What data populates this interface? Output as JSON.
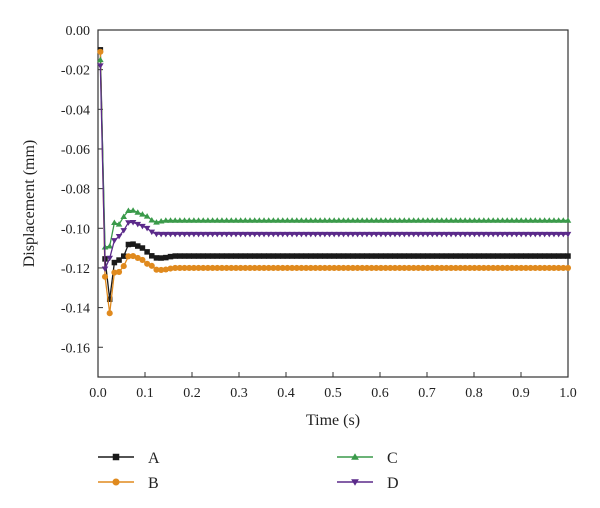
{
  "chart_data": {
    "type": "line",
    "xlabel": "Time (s)",
    "ylabel": "Displacement (mm)",
    "xlim": [
      0.0,
      1.0
    ],
    "ylim": [
      -0.175,
      0.0
    ],
    "xticks": [
      "0.0",
      "0.1",
      "0.2",
      "0.3",
      "0.4",
      "0.5",
      "0.6",
      "0.7",
      "0.8",
      "0.9",
      "1.0"
    ],
    "yticks": [
      "0.00",
      "-0.02",
      "-0.04",
      "-0.06",
      "-0.08",
      "-0.10",
      "-0.12",
      "-0.14",
      "-0.16"
    ],
    "grid": false,
    "legend_position": "bottom",
    "series": [
      {
        "name": "A",
        "color": "#1a1a1a",
        "marker": "square",
        "key": [
          [
            0.005,
            -0.01
          ],
          [
            0.01,
            -0.06
          ],
          [
            0.015,
            -0.116
          ],
          [
            0.025,
            -0.136
          ],
          [
            0.035,
            -0.117
          ],
          [
            0.045,
            -0.116
          ],
          [
            0.055,
            -0.114
          ],
          [
            0.065,
            -0.108
          ],
          [
            0.075,
            -0.108
          ],
          [
            0.085,
            -0.109
          ],
          [
            0.095,
            -0.11
          ],
          [
            0.105,
            -0.112
          ],
          [
            0.115,
            -0.114
          ],
          [
            0.125,
            -0.115
          ],
          [
            0.14,
            -0.115
          ],
          [
            0.16,
            -0.114
          ],
          [
            0.2,
            -0.114
          ],
          [
            0.3,
            -0.114
          ],
          [
            0.5,
            -0.114
          ],
          [
            0.7,
            -0.114
          ],
          [
            1.0,
            -0.114
          ]
        ]
      },
      {
        "name": "B",
        "color": "#e08a1e",
        "marker": "circle",
        "key": [
          [
            0.005,
            -0.011
          ],
          [
            0.01,
            -0.07
          ],
          [
            0.015,
            -0.125
          ],
          [
            0.025,
            -0.143
          ],
          [
            0.035,
            -0.122
          ],
          [
            0.045,
            -0.122
          ],
          [
            0.055,
            -0.119
          ],
          [
            0.065,
            -0.114
          ],
          [
            0.075,
            -0.114
          ],
          [
            0.085,
            -0.115
          ],
          [
            0.095,
            -0.116
          ],
          [
            0.105,
            -0.118
          ],
          [
            0.115,
            -0.119
          ],
          [
            0.125,
            -0.121
          ],
          [
            0.14,
            -0.121
          ],
          [
            0.16,
            -0.12
          ],
          [
            0.2,
            -0.12
          ],
          [
            0.3,
            -0.12
          ],
          [
            0.5,
            -0.12
          ],
          [
            0.7,
            -0.12
          ],
          [
            1.0,
            -0.12
          ]
        ]
      },
      {
        "name": "C",
        "color": "#3a9a4a",
        "marker": "triangle-up",
        "key": [
          [
            0.005,
            -0.015
          ],
          [
            0.01,
            -0.06
          ],
          [
            0.015,
            -0.11
          ],
          [
            0.025,
            -0.109
          ],
          [
            0.035,
            -0.097
          ],
          [
            0.045,
            -0.098
          ],
          [
            0.055,
            -0.094
          ],
          [
            0.065,
            -0.091
          ],
          [
            0.075,
            -0.091
          ],
          [
            0.085,
            -0.092
          ],
          [
            0.095,
            -0.093
          ],
          [
            0.105,
            -0.094
          ],
          [
            0.115,
            -0.096
          ],
          [
            0.125,
            -0.097
          ],
          [
            0.14,
            -0.096
          ],
          [
            0.16,
            -0.096
          ],
          [
            0.2,
            -0.096
          ],
          [
            0.3,
            -0.096
          ],
          [
            0.5,
            -0.096
          ],
          [
            0.7,
            -0.096
          ],
          [
            1.0,
            -0.096
          ]
        ]
      },
      {
        "name": "D",
        "color": "#5b2a8a",
        "marker": "triangle-down",
        "key": [
          [
            0.005,
            -0.018
          ],
          [
            0.01,
            -0.065
          ],
          [
            0.015,
            -0.121
          ],
          [
            0.025,
            -0.115
          ],
          [
            0.035,
            -0.106
          ],
          [
            0.045,
            -0.104
          ],
          [
            0.055,
            -0.101
          ],
          [
            0.065,
            -0.097
          ],
          [
            0.075,
            -0.097
          ],
          [
            0.085,
            -0.098
          ],
          [
            0.095,
            -0.099
          ],
          [
            0.105,
            -0.1
          ],
          [
            0.115,
            -0.102
          ],
          [
            0.125,
            -0.103
          ],
          [
            0.14,
            -0.103
          ],
          [
            0.16,
            -0.103
          ],
          [
            0.2,
            -0.103
          ],
          [
            0.3,
            -0.103
          ],
          [
            0.5,
            -0.103
          ],
          [
            0.7,
            -0.103
          ],
          [
            1.0,
            -0.103
          ]
        ]
      }
    ]
  }
}
